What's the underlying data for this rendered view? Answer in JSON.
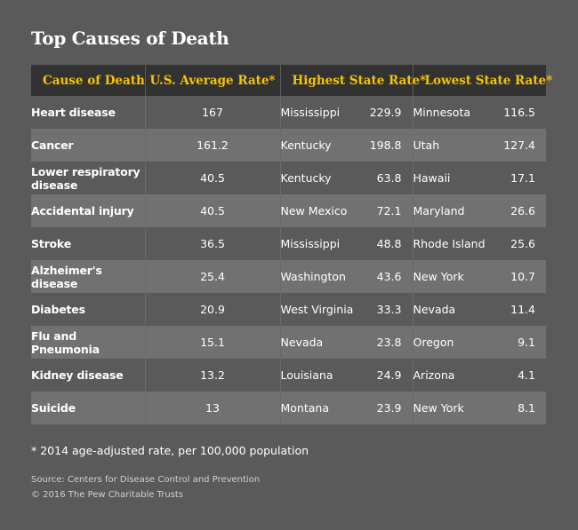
{
  "title": "Top Causes of Death",
  "footnote": "*  2014 age-adjusted rate, per 100,000 population",
  "source": "Source: Centers for Disease Control and Prevention",
  "copyright": "© 2016 The Pew Charitable Trusts",
  "chart_data": {
    "type": "table",
    "columns": [
      "Cause of Death",
      "U.S. Average Rate*",
      "Highest State Rate*",
      "Lowest State Rate*"
    ],
    "rows": [
      {
        "cause": "Heart disease",
        "avg": "167",
        "high_state": "Mississippi",
        "high_rate": "229.9",
        "low_state": "Minnesota",
        "low_rate": "116.5"
      },
      {
        "cause": "Cancer",
        "avg": "161.2",
        "high_state": "Kentucky",
        "high_rate": "198.8",
        "low_state": "Utah",
        "low_rate": "127.4"
      },
      {
        "cause": "Lower respiratory disease",
        "avg": "40.5",
        "high_state": "Kentucky",
        "high_rate": "63.8",
        "low_state": "Hawaii",
        "low_rate": "17.1"
      },
      {
        "cause": "Accidental injury",
        "avg": "40.5",
        "high_state": "New Mexico",
        "high_rate": "72.1",
        "low_state": "Maryland",
        "low_rate": "26.6"
      },
      {
        "cause": "Stroke",
        "avg": "36.5",
        "high_state": "Mississippi",
        "high_rate": "48.8",
        "low_state": "Rhode Island",
        "low_rate": "25.6"
      },
      {
        "cause": "Alzheimer's disease",
        "avg": "25.4",
        "high_state": "Washington",
        "high_rate": "43.6",
        "low_state": "New York",
        "low_rate": "10.7"
      },
      {
        "cause": "Diabetes",
        "avg": "20.9",
        "high_state": "West Virginia",
        "high_rate": "33.3",
        "low_state": "Nevada",
        "low_rate": "11.4"
      },
      {
        "cause": "Flu and Pneumonia",
        "avg": "15.1",
        "high_state": "Nevada",
        "high_rate": "23.8",
        "low_state": "Oregon",
        "low_rate": "9.1"
      },
      {
        "cause": "Kidney disease",
        "avg": "13.2",
        "high_state": "Louisiana",
        "high_rate": "24.9",
        "low_state": "Arizona",
        "low_rate": "4.1"
      },
      {
        "cause": "Suicide",
        "avg": "13",
        "high_state": "Montana",
        "high_rate": "23.9",
        "low_state": "New York",
        "low_rate": "8.1"
      }
    ]
  }
}
